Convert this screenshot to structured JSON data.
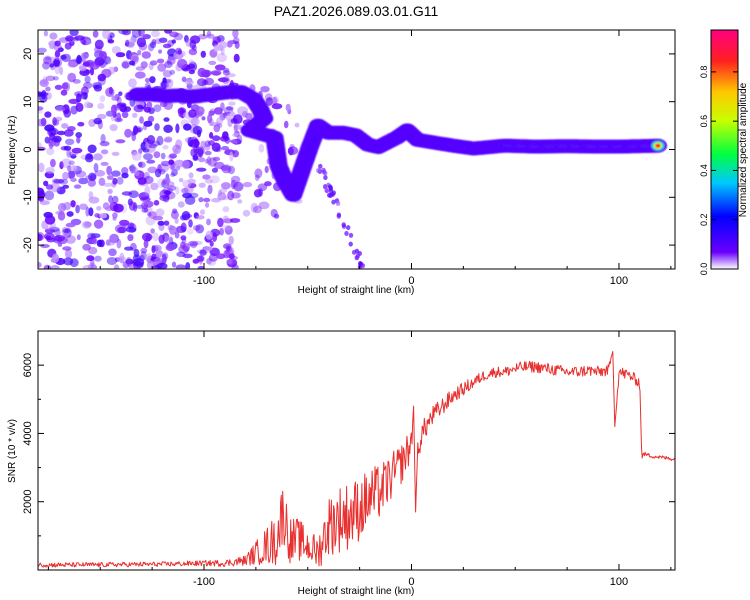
{
  "title": "PAZ1.2026.089.03.01.G11",
  "chart_data": [
    {
      "type": "heatmap",
      "name": "spectrogram",
      "xlabel": "Height of straight line (km)",
      "ylabel": "Frequency (Hz)",
      "xlim": [
        -180,
        127
      ],
      "ylim": [
        -25,
        25
      ],
      "xticks": [
        -100,
        0,
        100
      ],
      "yticks": [
        -20,
        -10,
        0,
        10,
        20
      ],
      "ridge": [
        {
          "x": -132,
          "y": 11.5,
          "a": 0.4
        },
        {
          "x": -125,
          "y": 11.5,
          "a": 0.45
        },
        {
          "x": -118,
          "y": 11.2,
          "a": 0.45
        },
        {
          "x": -112,
          "y": 11.3,
          "a": 0.4
        },
        {
          "x": -106,
          "y": 11.0,
          "a": 0.35
        },
        {
          "x": -88,
          "y": 12.0,
          "a": 0.35
        },
        {
          "x": -82,
          "y": 12.0,
          "a": 0.4
        },
        {
          "x": -76,
          "y": 10.5,
          "a": 0.35
        },
        {
          "x": -73,
          "y": 8.5,
          "a": 0.3
        },
        {
          "x": -71,
          "y": 6.5,
          "a": 0.3
        },
        {
          "x": -78,
          "y": 4.0,
          "a": 0.3
        },
        {
          "x": -66,
          "y": 2.5,
          "a": 0.3
        },
        {
          "x": -64,
          "y": -3.5,
          "a": 0.35
        },
        {
          "x": -61,
          "y": -6.5,
          "a": 0.4
        },
        {
          "x": -57,
          "y": -9.5,
          "a": 0.3
        },
        {
          "x": -49,
          "y": 0.5,
          "a": 0.3
        },
        {
          "x": -45,
          "y": 5.0,
          "a": 0.35
        },
        {
          "x": -40,
          "y": 3.5,
          "a": 0.35
        },
        {
          "x": -33,
          "y": 3.5,
          "a": 0.4
        },
        {
          "x": -27,
          "y": 3.0,
          "a": 0.4
        },
        {
          "x": -21,
          "y": 1.0,
          "a": 0.35
        },
        {
          "x": -16,
          "y": 0.5,
          "a": 0.35
        },
        {
          "x": -7,
          "y": 2.5,
          "a": 0.4
        },
        {
          "x": -2,
          "y": 4.0,
          "a": 0.35
        },
        {
          "x": 3,
          "y": 2.0,
          "a": 0.45
        },
        {
          "x": 10,
          "y": 1.5,
          "a": 0.55
        },
        {
          "x": 20,
          "y": 0.8,
          "a": 0.65
        },
        {
          "x": 30,
          "y": 0.2,
          "a": 0.7
        },
        {
          "x": 45,
          "y": 0.8,
          "a": 0.8
        },
        {
          "x": 60,
          "y": 0.6,
          "a": 0.9
        },
        {
          "x": 75,
          "y": 0.7,
          "a": 0.95
        },
        {
          "x": 90,
          "y": 0.6,
          "a": 0.95
        },
        {
          "x": 100,
          "y": 0.6,
          "a": 0.8
        },
        {
          "x": 110,
          "y": 0.7,
          "a": 0.85
        },
        {
          "x": 120,
          "y": 0.8,
          "a": 0.85
        }
      ]
    },
    {
      "type": "line",
      "name": "snr",
      "xlabel": "Height of straight line (km)",
      "ylabel": "SNR (10 * v/v)",
      "xlim": [
        -180,
        127
      ],
      "ylim": [
        0,
        7000
      ],
      "xticks": [
        -100,
        0,
        100
      ],
      "yticks": [
        2000,
        4000,
        6000
      ],
      "color": "#e8302f",
      "x": [
        -180,
        -160,
        -140,
        -120,
        -100,
        -90,
        -80,
        -75,
        -70,
        -65,
        -62,
        -58,
        -55,
        -50,
        -45,
        -40,
        -35,
        -30,
        -25,
        -20,
        -15,
        -10,
        -5,
        0,
        1,
        2,
        3,
        5,
        10,
        15,
        20,
        25,
        30,
        35,
        40,
        45,
        50,
        55,
        60,
        65,
        70,
        75,
        80,
        85,
        90,
        95,
        97,
        98,
        100,
        105,
        110,
        111,
        112,
        115,
        120,
        127
      ],
      "values": [
        150,
        150,
        160,
        170,
        200,
        200,
        280,
        500,
        700,
        900,
        1700,
        800,
        900,
        700,
        500,
        1300,
        1500,
        1600,
        1800,
        2100,
        2300,
        2700,
        3100,
        3700,
        4800,
        1700,
        3500,
        4000,
        4500,
        4800,
        5100,
        5300,
        5500,
        5700,
        5800,
        5800,
        5900,
        5950,
        5950,
        5900,
        5850,
        5800,
        5800,
        5850,
        5800,
        5850,
        6400,
        4200,
        5800,
        5700,
        5500,
        3300,
        3400,
        3350,
        3300,
        3250
      ],
      "noise_amp": [
        70,
        70,
        70,
        70,
        80,
        100,
        150,
        350,
        550,
        800,
        900,
        700,
        650,
        500,
        500,
        900,
        1000,
        1000,
        950,
        900,
        800,
        700,
        600,
        500,
        0,
        0,
        400,
        350,
        300,
        260,
        220,
        200,
        180,
        160,
        160,
        160,
        170,
        170,
        170,
        170,
        170,
        170,
        170,
        170,
        170,
        170,
        0,
        0,
        180,
        170,
        160,
        60,
        60,
        60,
        60,
        60
      ]
    }
  ],
  "colorbar": {
    "label": "Normalized spectral amplitude",
    "ticks": [
      "0.0",
      "0.2",
      "0.4",
      "0.6",
      "0.8"
    ],
    "tick_values": [
      0.0,
      0.2,
      0.4,
      0.6,
      0.8
    ],
    "range": [
      0,
      0.97
    ],
    "gradient": [
      "#ffffff",
      "#6a00ff",
      "#0000ff",
      "#00c8ff",
      "#00ff40",
      "#c8ff00",
      "#ffc800",
      "#ff2020",
      "#ff0080"
    ]
  }
}
